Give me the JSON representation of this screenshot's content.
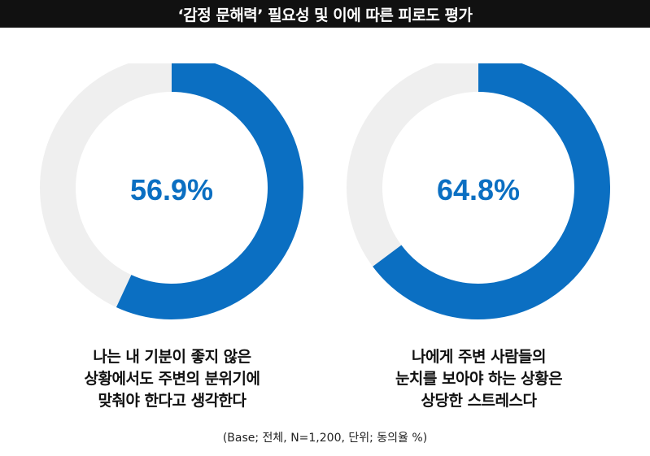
{
  "title": "‘감정 문해력’ 필요성 및 이에 따른 피로도 평가",
  "colors": {
    "accent": "#0b6fc2",
    "track": "#efefef",
    "title_bg": "#111111"
  },
  "chart_data": [
    {
      "type": "pie",
      "style": "donut",
      "value": 56.9,
      "rest": 43.1,
      "label": "56.9%",
      "caption_lines": [
        "나는 내 기분이 좋지 않은",
        "상황에서도 주변의 분위기에",
        "맞춰야 한다고 생각한다"
      ]
    },
    {
      "type": "pie",
      "style": "donut",
      "value": 64.8,
      "rest": 35.2,
      "label": "64.8%",
      "caption_lines": [
        "나에게 주변 사람들의",
        "눈치를 보아야 하는 상황은",
        "상당한 스트레스다"
      ]
    }
  ],
  "footnote": "(Base; 전체, N=1,200, 단위; 동의율 %)"
}
